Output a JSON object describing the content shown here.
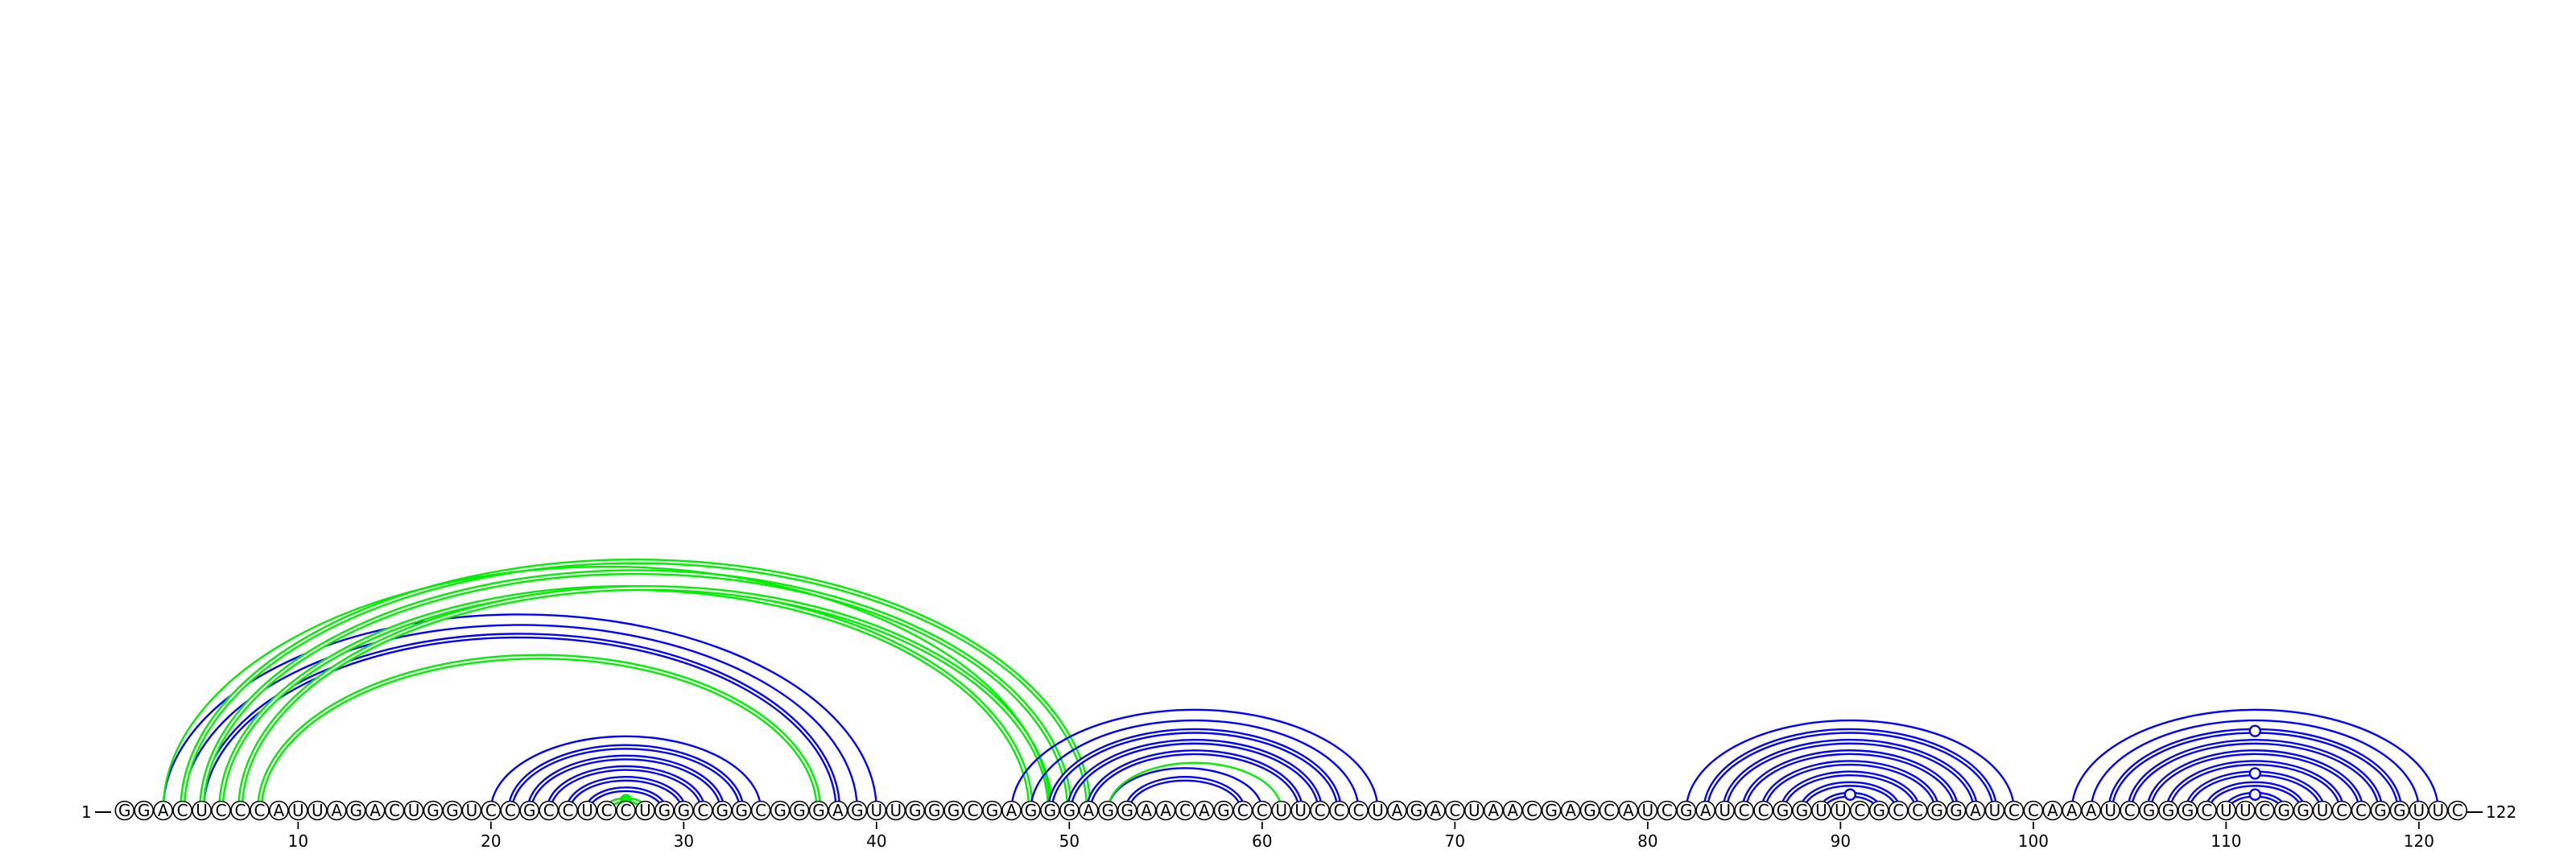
{
  "sequence": "GGACUCCCAUUAGACUGGUCCGCCUCCUGGCGGCGGGAGUUGGGCGAGGGAGGAACAGCCUUCCCUAGACUAACGAGCAUCGAUCCGGUUCGCCGGAUCCAAAUCGGGCUUCGGUCCGGUUC",
  "start_label": "1",
  "end_label": "122",
  "tick_labels": [
    "10",
    "20",
    "30",
    "40",
    "50",
    "60",
    "70",
    "80",
    "90",
    "100",
    "110",
    "120"
  ],
  "colors": {
    "blue": "#0000ff",
    "green": "#00ee00",
    "black": "#000000"
  },
  "arc_groups": [
    {
      "color": "blue",
      "double": true,
      "pairs": [
        [
          21,
          33
        ],
        [
          22,
          32
        ],
        [
          23,
          31
        ],
        [
          24,
          30
        ],
        [
          25,
          29
        ],
        [
          26,
          28
        ]
      ]
    },
    {
      "color": "blue",
      "double": false,
      "pairs": [
        [
          20,
          34
        ]
      ]
    },
    {
      "color": "blue",
      "double": false,
      "pairs": [
        [
          3,
          40
        ],
        [
          4,
          39
        ]
      ]
    },
    {
      "color": "blue",
      "double": true,
      "pairs": [
        [
          5,
          38
        ]
      ]
    },
    {
      "color": "green",
      "double": true,
      "pairs": [
        [
          26,
          28
        ],
        [
          8,
          37
        ],
        [
          6,
          48
        ],
        [
          7,
          49
        ],
        [
          5,
          50
        ],
        [
          4,
          51
        ]
      ]
    },
    {
      "color": "green",
      "double": false,
      "pairs": [
        [
          3,
          49
        ]
      ]
    },
    {
      "color": "blue",
      "double": false,
      "pairs": [
        [
          47,
          66
        ],
        [
          48,
          65
        ],
        [
          52,
          60
        ]
      ]
    },
    {
      "color": "blue",
      "double": true,
      "pairs": [
        [
          49,
          64
        ],
        [
          50,
          63
        ],
        [
          51,
          62
        ],
        [
          53,
          59
        ]
      ]
    },
    {
      "color": "green",
      "double": false,
      "pairs": [
        [
          52,
          61
        ]
      ]
    },
    {
      "color": "blue",
      "double": false,
      "pairs": [
        [
          82,
          99
        ]
      ]
    },
    {
      "color": "blue",
      "double": true,
      "pairs": [
        [
          83,
          98
        ],
        [
          84,
          97
        ],
        [
          85,
          96
        ],
        [
          86,
          95
        ],
        [
          87,
          94
        ],
        [
          88,
          93
        ],
        [
          89,
          92
        ]
      ]
    },
    {
      "color": "blue",
      "double": false,
      "pairs": [
        [
          102,
          121
        ],
        [
          103,
          120
        ]
      ]
    },
    {
      "color": "blue",
      "double": true,
      "pairs": [
        [
          104,
          119
        ],
        [
          105,
          118
        ],
        [
          106,
          117
        ],
        [
          107,
          116
        ],
        [
          108,
          115
        ],
        [
          109,
          114
        ],
        [
          110,
          113
        ]
      ]
    }
  ],
  "markers": [
    {
      "style": "filled-green",
      "i": 26,
      "j": 28
    },
    {
      "style": "open-blue",
      "i": 89,
      "j": 92
    },
    {
      "style": "open-blue",
      "i": 110,
      "j": 113
    },
    {
      "style": "open-blue",
      "i": 108,
      "j": 115
    },
    {
      "style": "open-blue",
      "i": 104,
      "j": 119
    }
  ]
}
